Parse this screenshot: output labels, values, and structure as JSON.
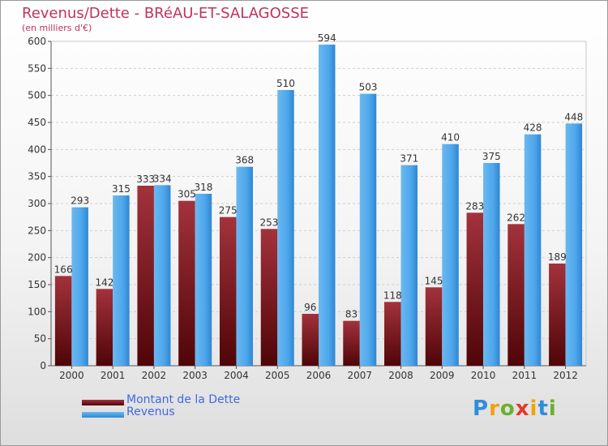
{
  "title": "Revenus/Dette - BRéAU-ET-SALAGOSSE",
  "subtitle": "(en milliers d'€)",
  "logo": {
    "letters": [
      "P",
      "r",
      "o",
      "x",
      "i",
      "t",
      "i"
    ],
    "colors": [
      "#2e8ddc",
      "#f2a20a",
      "#6ab02e",
      "#e23a2a",
      "#f2a20a",
      "#2e8ddc",
      "#6ab02e"
    ]
  },
  "legend": [
    {
      "label": "Montant de la Dette",
      "color": "#6b0f18"
    },
    {
      "label": "Revenus",
      "color": "#3d9be6"
    }
  ],
  "chart_data": {
    "type": "bar",
    "title": "Revenus/Dette - BRéAU-ET-SALAGOSSE",
    "ylabel": "(en milliers d'€)",
    "categories": [
      "2000",
      "2001",
      "2002",
      "2003",
      "2004",
      "2005",
      "2006",
      "2007",
      "2008",
      "2009",
      "2010",
      "2011",
      "2012"
    ],
    "series": [
      {
        "name": "Montant de la Dette",
        "color": "#6b0f18",
        "values": [
          166,
          142,
          333,
          305,
          275,
          253,
          96,
          83,
          118,
          145,
          283,
          262,
          189
        ]
      },
      {
        "name": "Revenus",
        "color": "#3d9be6",
        "values": [
          293,
          315,
          334,
          318,
          368,
          510,
          594,
          503,
          371,
          410,
          375,
          428,
          448
        ]
      }
    ],
    "ylim": [
      0,
      600
    ],
    "yticks": [
      0,
      50,
      100,
      150,
      200,
      250,
      300,
      350,
      400,
      450,
      500,
      550,
      600
    ],
    "grid": true,
    "legend_position": "bottom-left"
  }
}
